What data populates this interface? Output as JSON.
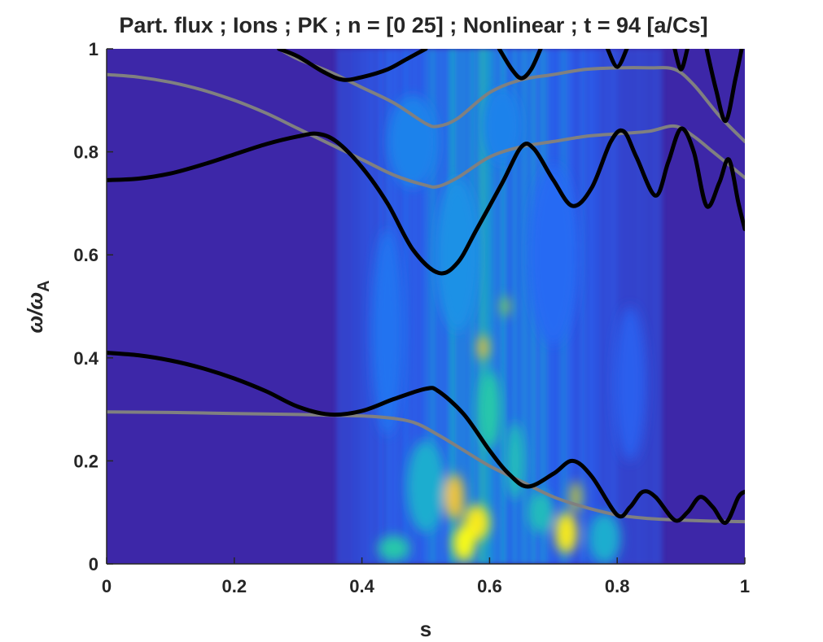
{
  "chart_data": {
    "type": "heatmap",
    "title": "Part. flux ; Ions ; PK ; n = [0 25] ; Nonlinear ; t = 94 [a/Cs]",
    "xlabel": "s",
    "ylabel_main": "ω/ω",
    "ylabel_sub": "A",
    "xlim": [
      0,
      1
    ],
    "ylim": [
      0,
      1
    ],
    "xticks": [
      "0",
      "0.2",
      "0.4",
      "0.6",
      "0.8",
      "1"
    ],
    "yticks": [
      "0",
      "0.2",
      "0.4",
      "0.6",
      "0.8",
      "1"
    ],
    "grid": false,
    "colormap": "parula",
    "colors": {
      "background": "#3d27a8",
      "black_curve": "#000000",
      "gray_curve": "#808080",
      "axis": "#262626"
    },
    "heatmap_blobs": [
      {
        "x": 0.56,
        "y": 0.04,
        "w": 0.035,
        "h": 0.07,
        "v": 1.0
      },
      {
        "x": 0.58,
        "y": 0.08,
        "w": 0.04,
        "h": 0.07,
        "v": 0.95
      },
      {
        "x": 0.545,
        "y": 0.13,
        "w": 0.03,
        "h": 0.09,
        "v": 0.85
      },
      {
        "x": 0.72,
        "y": 0.06,
        "w": 0.035,
        "h": 0.08,
        "v": 0.95
      },
      {
        "x": 0.735,
        "y": 0.13,
        "w": 0.02,
        "h": 0.06,
        "v": 0.75
      },
      {
        "x": 0.59,
        "y": 0.42,
        "w": 0.018,
        "h": 0.05,
        "v": 0.8
      },
      {
        "x": 0.625,
        "y": 0.5,
        "w": 0.015,
        "h": 0.04,
        "v": 0.7
      },
      {
        "x": 0.6,
        "y": 0.3,
        "w": 0.035,
        "h": 0.15,
        "v": 0.55
      },
      {
        "x": 0.64,
        "y": 0.2,
        "w": 0.03,
        "h": 0.15,
        "v": 0.5
      },
      {
        "x": 0.5,
        "y": 0.15,
        "w": 0.06,
        "h": 0.18,
        "v": 0.45
      },
      {
        "x": 0.45,
        "y": 0.03,
        "w": 0.05,
        "h": 0.05,
        "v": 0.55
      },
      {
        "x": 0.68,
        "y": 0.1,
        "w": 0.04,
        "h": 0.08,
        "v": 0.5
      },
      {
        "x": 0.78,
        "y": 0.05,
        "w": 0.05,
        "h": 0.1,
        "v": 0.45
      },
      {
        "x": 0.55,
        "y": 0.6,
        "w": 0.07,
        "h": 0.3,
        "v": 0.35
      },
      {
        "x": 0.48,
        "y": 0.82,
        "w": 0.08,
        "h": 0.18,
        "v": 0.3
      },
      {
        "x": 0.62,
        "y": 0.85,
        "w": 0.06,
        "h": 0.15,
        "v": 0.3
      },
      {
        "x": 0.44,
        "y": 0.45,
        "w": 0.05,
        "h": 0.4,
        "v": 0.25
      },
      {
        "x": 0.7,
        "y": 0.6,
        "w": 0.08,
        "h": 0.35,
        "v": 0.22
      },
      {
        "x": 0.82,
        "y": 0.35,
        "w": 0.05,
        "h": 0.3,
        "v": 0.18
      }
    ],
    "series": [
      {
        "color": "gray",
        "points": [
          [
            0,
            0.95
          ],
          [
            0.05,
            0.945
          ],
          [
            0.1,
            0.935
          ],
          [
            0.15,
            0.92
          ],
          [
            0.2,
            0.9
          ],
          [
            0.25,
            0.875
          ],
          [
            0.3,
            0.845
          ],
          [
            0.35,
            0.815
          ],
          [
            0.4,
            0.785
          ],
          [
            0.45,
            0.755
          ],
          [
            0.5,
            0.735
          ],
          [
            0.52,
            0.733
          ],
          [
            0.55,
            0.75
          ],
          [
            0.6,
            0.79
          ],
          [
            0.65,
            0.81
          ],
          [
            0.7,
            0.82
          ],
          [
            0.75,
            0.83
          ],
          [
            0.8,
            0.835
          ],
          [
            0.85,
            0.84
          ],
          [
            0.89,
            0.85
          ],
          [
            0.92,
            0.83
          ],
          [
            0.95,
            0.8
          ],
          [
            1.0,
            0.75
          ]
        ]
      },
      {
        "color": "gray",
        "points": [
          [
            0.27,
            1.0
          ],
          [
            0.3,
            0.98
          ],
          [
            0.35,
            0.955
          ],
          [
            0.4,
            0.925
          ],
          [
            0.45,
            0.895
          ],
          [
            0.5,
            0.855
          ],
          [
            0.52,
            0.85
          ],
          [
            0.55,
            0.865
          ],
          [
            0.6,
            0.915
          ],
          [
            0.65,
            0.94
          ],
          [
            0.7,
            0.95
          ],
          [
            0.75,
            0.96
          ],
          [
            0.8,
            0.963
          ],
          [
            0.85,
            0.963
          ],
          [
            0.89,
            0.96
          ],
          [
            0.92,
            0.93
          ],
          [
            0.96,
            0.87
          ],
          [
            1.0,
            0.82
          ]
        ]
      },
      {
        "color": "gray",
        "points": [
          [
            0,
            0.295
          ],
          [
            0.1,
            0.294
          ],
          [
            0.2,
            0.292
          ],
          [
            0.3,
            0.29
          ],
          [
            0.38,
            0.288
          ],
          [
            0.43,
            0.285
          ],
          [
            0.48,
            0.275
          ],
          [
            0.52,
            0.25
          ],
          [
            0.56,
            0.22
          ],
          [
            0.6,
            0.19
          ],
          [
            0.65,
            0.16
          ],
          [
            0.7,
            0.13
          ],
          [
            0.75,
            0.11
          ],
          [
            0.8,
            0.095
          ],
          [
            0.85,
            0.088
          ],
          [
            0.9,
            0.085
          ],
          [
            0.95,
            0.083
          ],
          [
            1.0,
            0.082
          ]
        ]
      },
      {
        "color": "black",
        "points": [
          [
            0,
            0.745
          ],
          [
            0.05,
            0.748
          ],
          [
            0.1,
            0.758
          ],
          [
            0.15,
            0.775
          ],
          [
            0.2,
            0.795
          ],
          [
            0.25,
            0.815
          ],
          [
            0.3,
            0.83
          ],
          [
            0.33,
            0.835
          ],
          [
            0.36,
            0.82
          ],
          [
            0.4,
            0.77
          ],
          [
            0.44,
            0.7
          ],
          [
            0.48,
            0.61
          ],
          [
            0.52,
            0.565
          ],
          [
            0.55,
            0.585
          ],
          [
            0.58,
            0.65
          ],
          [
            0.62,
            0.74
          ],
          [
            0.65,
            0.81
          ],
          [
            0.67,
            0.805
          ],
          [
            0.7,
            0.745
          ],
          [
            0.73,
            0.695
          ],
          [
            0.76,
            0.73
          ],
          [
            0.79,
            0.82
          ],
          [
            0.81,
            0.84
          ],
          [
            0.83,
            0.79
          ],
          [
            0.86,
            0.715
          ],
          [
            0.88,
            0.78
          ],
          [
            0.9,
            0.845
          ],
          [
            0.92,
            0.8
          ],
          [
            0.94,
            0.695
          ],
          [
            0.96,
            0.74
          ],
          [
            0.975,
            0.785
          ],
          [
            0.99,
            0.7
          ],
          [
            1.0,
            0.65
          ]
        ]
      },
      {
        "color": "black",
        "points": [
          [
            0,
            0.41
          ],
          [
            0.05,
            0.405
          ],
          [
            0.1,
            0.395
          ],
          [
            0.15,
            0.38
          ],
          [
            0.2,
            0.36
          ],
          [
            0.25,
            0.335
          ],
          [
            0.3,
            0.305
          ],
          [
            0.35,
            0.29
          ],
          [
            0.4,
            0.297
          ],
          [
            0.45,
            0.32
          ],
          [
            0.5,
            0.34
          ],
          [
            0.52,
            0.335
          ],
          [
            0.56,
            0.29
          ],
          [
            0.6,
            0.22
          ],
          [
            0.63,
            0.175
          ],
          [
            0.66,
            0.15
          ],
          [
            0.7,
            0.175
          ],
          [
            0.73,
            0.2
          ],
          [
            0.76,
            0.17
          ],
          [
            0.8,
            0.095
          ],
          [
            0.82,
            0.11
          ],
          [
            0.84,
            0.14
          ],
          [
            0.86,
            0.13
          ],
          [
            0.89,
            0.085
          ],
          [
            0.91,
            0.1
          ],
          [
            0.93,
            0.13
          ],
          [
            0.95,
            0.11
          ],
          [
            0.97,
            0.08
          ],
          [
            0.99,
            0.13
          ],
          [
            1.0,
            0.14
          ]
        ]
      },
      {
        "color": "black",
        "points": [
          [
            0.27,
            1.0
          ],
          [
            0.3,
            0.985
          ],
          [
            0.34,
            0.955
          ],
          [
            0.37,
            0.94
          ],
          [
            0.4,
            0.945
          ],
          [
            0.44,
            0.96
          ],
          [
            0.47,
            0.98
          ],
          [
            0.5,
            1.0
          ]
        ]
      },
      {
        "color": "black",
        "points": [
          [
            0.615,
            1.0
          ],
          [
            0.635,
            0.96
          ],
          [
            0.65,
            0.943
          ],
          [
            0.665,
            0.96
          ],
          [
            0.68,
            1.0
          ]
        ]
      },
      {
        "color": "black",
        "points": [
          [
            0.785,
            1.0
          ],
          [
            0.8,
            0.965
          ],
          [
            0.815,
            1.0
          ]
        ]
      },
      {
        "color": "black",
        "points": [
          [
            0.89,
            1.0
          ],
          [
            0.9,
            0.96
          ],
          [
            0.91,
            1.0
          ]
        ]
      },
      {
        "color": "black",
        "points": [
          [
            0.94,
            1.0
          ],
          [
            0.955,
            0.92
          ],
          [
            0.97,
            0.86
          ],
          [
            0.985,
            0.94
          ],
          [
            0.995,
            1.0
          ]
        ]
      }
    ]
  }
}
